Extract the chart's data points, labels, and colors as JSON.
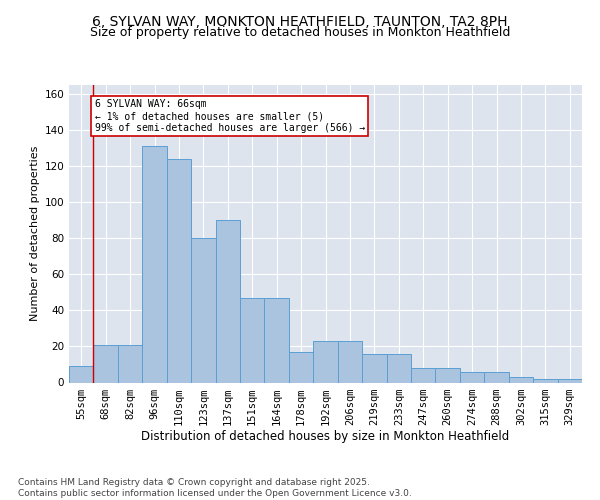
{
  "title_line1": "6, SYLVAN WAY, MONKTON HEATHFIELD, TAUNTON, TA2 8PH",
  "title_line2": "Size of property relative to detached houses in Monkton Heathfield",
  "xlabel": "Distribution of detached houses by size in Monkton Heathfield",
  "ylabel": "Number of detached properties",
  "categories": [
    "55sqm",
    "68sqm",
    "82sqm",
    "96sqm",
    "110sqm",
    "123sqm",
    "137sqm",
    "151sqm",
    "164sqm",
    "178sqm",
    "192sqm",
    "206sqm",
    "219sqm",
    "233sqm",
    "247sqm",
    "260sqm",
    "274sqm",
    "288sqm",
    "302sqm",
    "315sqm",
    "329sqm"
  ],
  "values": [
    9,
    21,
    21,
    131,
    124,
    80,
    90,
    47,
    47,
    17,
    23,
    23,
    16,
    16,
    8,
    8,
    6,
    6,
    3,
    2,
    2
  ],
  "bar_color": "#aac4e0",
  "bar_edge_color": "#5a9fd4",
  "highlight_line_color": "#cc0000",
  "annotation_text": "6 SYLVAN WAY: 66sqm\n← 1% of detached houses are smaller (5)\n99% of semi-detached houses are larger (566) →",
  "annotation_box_color": "#ffffff",
  "annotation_box_edge": "#cc0000",
  "ylim": [
    0,
    165
  ],
  "yticks": [
    0,
    20,
    40,
    60,
    80,
    100,
    120,
    140,
    160
  ],
  "background_color": "#dde4ee",
  "footer_text": "Contains HM Land Registry data © Crown copyright and database right 2025.\nContains public sector information licensed under the Open Government Licence v3.0.",
  "title_fontsize": 10,
  "subtitle_fontsize": 9,
  "xlabel_fontsize": 8.5,
  "ylabel_fontsize": 8,
  "tick_fontsize": 7.5,
  "annotation_fontsize": 7,
  "footer_fontsize": 6.5
}
